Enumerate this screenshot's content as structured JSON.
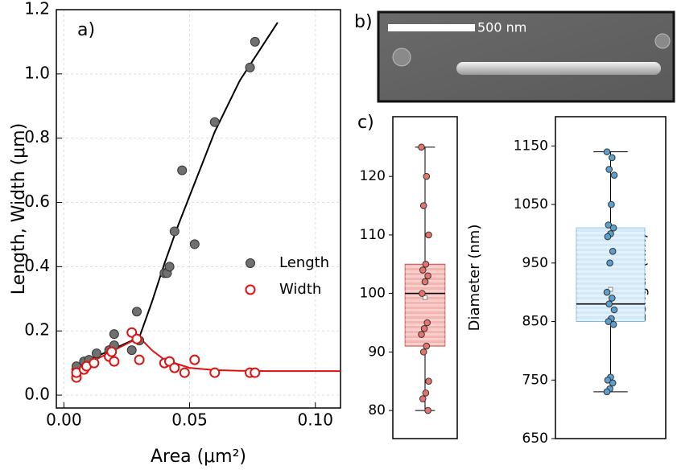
{
  "chart_data": [
    {
      "type": "scatter",
      "label": "a)",
      "xlabel": "Area (μm²)",
      "ylabel": "Length, Width (μm)",
      "xlim": [
        -0.003,
        0.11
      ],
      "ylim": [
        -0.04,
        1.2
      ],
      "xticks": [
        {
          "value": 0,
          "label": "0.00"
        },
        {
          "value": 0.05,
          "label": "0.05"
        },
        {
          "value": 0.1,
          "label": "0.10"
        }
      ],
      "yticks": [
        {
          "value": 0,
          "label": "0.0"
        },
        0.2,
        0.4,
        0.6,
        0.8,
        {
          "value": 1,
          "label": "1.0"
        },
        1.2
      ],
      "grid": true,
      "legend": "right",
      "series": [
        {
          "name": "Length",
          "color": "#707070",
          "marker": "filled",
          "x": [
            0.005,
            0.008,
            0.01,
            0.013,
            0.018,
            0.02,
            0.02,
            0.027,
            0.029,
            0.03,
            0.04,
            0.041,
            0.042,
            0.044,
            0.047,
            0.052,
            0.06,
            0.074,
            0.076
          ],
          "values": [
            0.09,
            0.105,
            0.11,
            0.13,
            0.14,
            0.155,
            0.19,
            0.14,
            0.26,
            0.17,
            0.38,
            0.38,
            0.4,
            0.51,
            0.7,
            0.47,
            0.85,
            1.02,
            1.1
          ]
        },
        {
          "name": "Width",
          "color": "#dd1111",
          "marker": "open",
          "x": [
            0.005,
            0.005,
            0.008,
            0.009,
            0.012,
            0.018,
            0.019,
            0.02,
            0.027,
            0.029,
            0.03,
            0.04,
            0.042,
            0.044,
            0.048,
            0.052,
            0.06,
            0.074,
            0.076
          ],
          "values": [
            0.055,
            0.07,
            0.08,
            0.09,
            0.1,
            0.12,
            0.135,
            0.105,
            0.195,
            0.175,
            0.11,
            0.1,
            0.105,
            0.085,
            0.07,
            0.11,
            0.07,
            0.07,
            0.07
          ]
        }
      ],
      "fits": [
        {
          "color": "#000000",
          "x": [
            0.003,
            0.01,
            0.02,
            0.03,
            0.035,
            0.04,
            0.045,
            0.05,
            0.06,
            0.07,
            0.08,
            0.085
          ],
          "values": [
            0.08,
            0.11,
            0.145,
            0.18,
            0.29,
            0.41,
            0.52,
            0.62,
            0.82,
            0.98,
            1.1,
            1.16
          ]
        },
        {
          "color": "#dd1111",
          "x": [
            0.003,
            0.01,
            0.02,
            0.03,
            0.035,
            0.04,
            0.05,
            0.06,
            0.07,
            0.08,
            0.09,
            0.1,
            0.11
          ],
          "values": [
            0.08,
            0.1,
            0.14,
            0.18,
            0.14,
            0.11,
            0.085,
            0.078,
            0.076,
            0.075,
            0.075,
            0.075,
            0.075
          ]
        }
      ]
    },
    {
      "type": "box",
      "label": "c)",
      "ylabel": "Diameter (nm)",
      "ylim": [
        75.2,
        130.2
      ],
      "yticks": [
        80,
        90,
        100,
        110,
        120
      ],
      "color": "#f4b5b0",
      "edge_color": "#c85050",
      "point_color": "#e8736b",
      "stats": {
        "whisker_low": 80,
        "q1": 91,
        "median": 100,
        "q3": 105,
        "whisker_high": 125,
        "mean": 99.3
      },
      "points": [
        125,
        120,
        115,
        110,
        105,
        104,
        103,
        102,
        100,
        95,
        94,
        93,
        91,
        90,
        85,
        83,
        82,
        80
      ]
    },
    {
      "type": "box",
      "ylabel": "Length (nm)",
      "ylim": [
        650,
        1200
      ],
      "yticks": [
        650,
        750,
        850,
        950,
        1050,
        1150
      ],
      "color": "#d3e9f8",
      "edge_color": "#80b8dc",
      "point_color": "#5aa0d0",
      "stats": {
        "whisker_low": 730,
        "q1": 850,
        "median": 880,
        "q3": 1010,
        "whisker_high": 1140,
        "mean": 905
      },
      "points": [
        1140,
        1130,
        1110,
        1100,
        1050,
        1015,
        1010,
        1000,
        995,
        970,
        950,
        900,
        890,
        880,
        870,
        855,
        850,
        845,
        755,
        750,
        745,
        735,
        730
      ]
    }
  ],
  "image": {
    "label": "b)",
    "scale_bar": "500 nm"
  }
}
